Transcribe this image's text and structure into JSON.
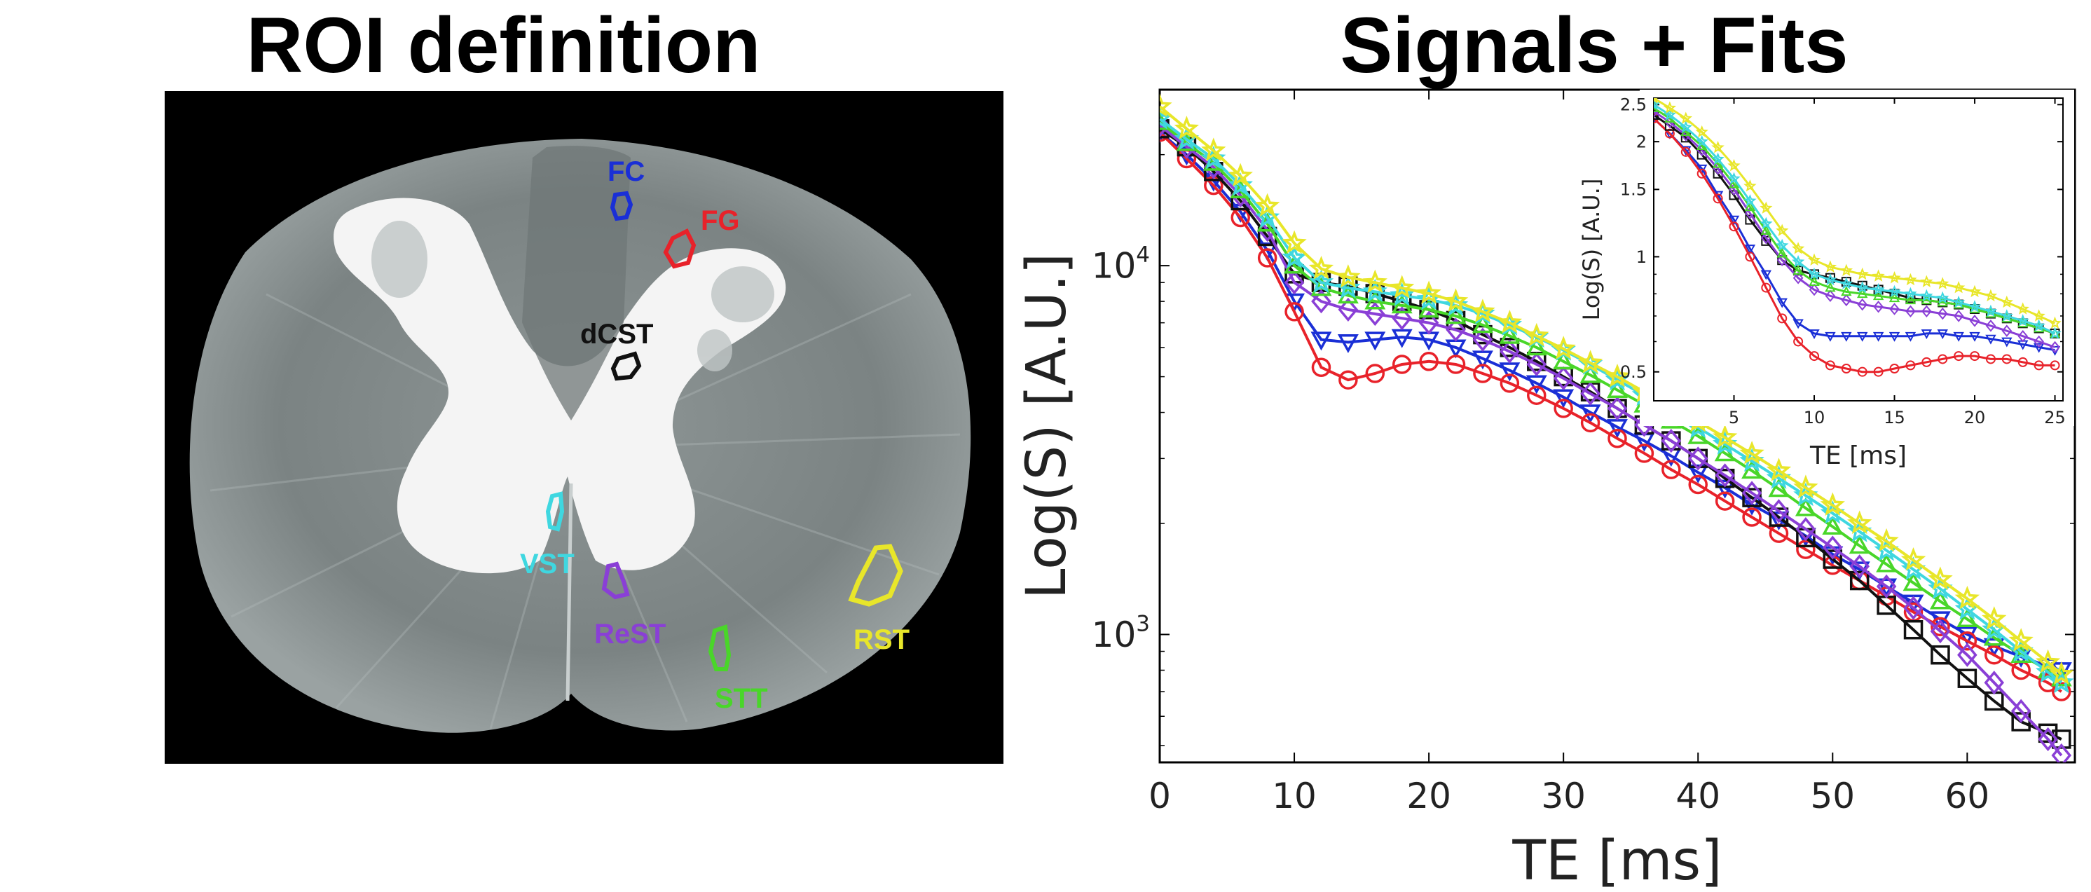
{
  "left_panel": {
    "title": "ROI definition",
    "rois": [
      {
        "label": "FC",
        "color": "#1a2fd6"
      },
      {
        "label": "FG",
        "color": "#e8222a"
      },
      {
        "label": "dCST",
        "color": "#111111"
      },
      {
        "label": "VST",
        "color": "#3fd7e0"
      },
      {
        "label": "ReST",
        "color": "#8a3fd6"
      },
      {
        "label": "RST",
        "color": "#e8e62a"
      },
      {
        "label": "STT",
        "color": "#49d629"
      }
    ]
  },
  "right_panel": {
    "title": "Signals + Fits"
  },
  "chart_data": [
    {
      "type": "scatter",
      "title": "Signals + Fits",
      "xlabel": "TE [ms]",
      "ylabel": "Log(S) [A.U.]",
      "yscale": "log",
      "xlim": [
        0,
        68
      ],
      "ylim": [
        450,
        30000
      ],
      "xticks": [
        0,
        10,
        20,
        30,
        40,
        50,
        60
      ],
      "xtick_labels": [
        "0",
        "10",
        "20",
        "30",
        "40",
        "50",
        "60"
      ],
      "yticks": [
        1000,
        10000
      ],
      "ytick_labels": [
        {
          "base": "10",
          "exp": "3"
        },
        {
          "base": "10",
          "exp": "4"
        }
      ],
      "x": [
        0,
        2,
        4,
        6,
        8,
        10,
        12,
        14,
        16,
        18,
        20,
        22,
        24,
        26,
        28,
        30,
        32,
        34,
        36,
        38,
        40,
        42,
        44,
        46,
        48,
        50,
        52,
        54,
        56,
        58,
        60,
        62,
        64,
        66,
        67
      ],
      "series": [
        {
          "name": "FC",
          "marker": "triangle-down",
          "color": "#1a2fd6",
          "values": [
            23000,
            20000,
            17000,
            14000,
            11000,
            8000,
            6300,
            6200,
            6300,
            6400,
            6300,
            6000,
            5600,
            5200,
            4800,
            4400,
            4000,
            3650,
            3350,
            3050,
            2750,
            2500,
            2250,
            2050,
            1850,
            1650,
            1500,
            1350,
            1220,
            1100,
            1000,
            930,
            870,
            820,
            800
          ]
        },
        {
          "name": "FG",
          "marker": "circle",
          "color": "#e8222a",
          "values": [
            23000,
            19500,
            16500,
            13500,
            10500,
            7500,
            5300,
            4900,
            5100,
            5400,
            5500,
            5400,
            5100,
            4800,
            4450,
            4100,
            3750,
            3400,
            3100,
            2800,
            2550,
            2300,
            2080,
            1880,
            1700,
            1540,
            1400,
            1270,
            1150,
            1050,
            960,
            880,
            800,
            740,
            700
          ]
        },
        {
          "name": "dCST",
          "marker": "square",
          "color": "#111111",
          "values": [
            23500,
            21000,
            18000,
            15000,
            12000,
            9500,
            9000,
            8800,
            8400,
            8000,
            7600,
            7100,
            6500,
            6000,
            5500,
            5000,
            4550,
            4100,
            3700,
            3350,
            3000,
            2650,
            2350,
            2080,
            1830,
            1600,
            1400,
            1200,
            1030,
            880,
            760,
            660,
            580,
            540,
            520
          ]
        },
        {
          "name": "ReST",
          "marker": "diamond",
          "color": "#8a3fd6",
          "values": [
            24000,
            21000,
            18500,
            15500,
            12500,
            9000,
            8000,
            7600,
            7400,
            7200,
            7000,
            6700,
            6300,
            5850,
            5400,
            4950,
            4500,
            4100,
            3700,
            3350,
            3000,
            2700,
            2420,
            2160,
            1930,
            1720,
            1530,
            1350,
            1180,
            1020,
            880,
            740,
            620,
            520,
            470
          ]
        },
        {
          "name": "STT",
          "marker": "triangle-up",
          "color": "#49d629",
          "values": [
            24500,
            21500,
            19000,
            16000,
            13000,
            10000,
            8700,
            8300,
            8000,
            7800,
            7600,
            7300,
            6900,
            6450,
            6000,
            5500,
            5050,
            4600,
            4200,
            3800,
            3450,
            3100,
            2780,
            2480,
            2200,
            1960,
            1740,
            1550,
            1380,
            1230,
            1100,
            980,
            880,
            800,
            760
          ]
        },
        {
          "name": "VST",
          "marker": "star",
          "color": "#3fd7e0",
          "values": [
            25000,
            22000,
            19500,
            16500,
            13500,
            10500,
            9000,
            8700,
            8500,
            8300,
            8100,
            7800,
            7400,
            6900,
            6400,
            5900,
            5400,
            4900,
            4450,
            4030,
            3640,
            3280,
            2950,
            2650,
            2380,
            2130,
            1900,
            1690,
            1500,
            1330,
            1170,
            1030,
            900,
            790,
            740
          ]
        },
        {
          "name": "RST",
          "marker": "star",
          "color": "#e8e62a",
          "values": [
            27000,
            23500,
            20500,
            17500,
            14500,
            11500,
            9800,
            9300,
            9000,
            8700,
            8400,
            8000,
            7500,
            7000,
            6450,
            5950,
            5450,
            5000,
            4550,
            4150,
            3780,
            3420,
            3090,
            2780,
            2500,
            2240,
            2000,
            1790,
            1590,
            1410,
            1250,
            1100,
            960,
            840,
            780
          ]
        }
      ]
    },
    {
      "type": "scatter",
      "title": "",
      "xlabel": "TE [ms]",
      "ylabel": "Log(S) [A.U.]",
      "yscale": "log",
      "xlim": [
        0,
        25.5
      ],
      "ylim": [
        0.42,
        2.6
      ],
      "xticks": [
        5,
        10,
        15,
        20,
        25
      ],
      "xtick_labels": [
        "5",
        "10",
        "15",
        "20",
        "25"
      ],
      "yticks": [
        0.5,
        1,
        1.5,
        2,
        2.5
      ],
      "ytick_labels": [
        "0.5",
        "1",
        "1.5",
        "2",
        "2.5"
      ],
      "x": [
        0,
        1,
        2,
        3,
        4,
        5,
        6,
        7,
        8,
        9,
        10,
        11,
        12,
        13,
        14,
        15,
        16,
        17,
        18,
        19,
        20,
        21,
        22,
        23,
        24,
        25
      ],
      "series": [
        {
          "name": "FC",
          "marker": "triangle-down",
          "color": "#1a2fd6",
          "values": [
            2.3,
            2.1,
            1.9,
            1.7,
            1.45,
            1.25,
            1.05,
            0.9,
            0.76,
            0.67,
            0.63,
            0.62,
            0.62,
            0.62,
            0.62,
            0.62,
            0.62,
            0.63,
            0.63,
            0.62,
            0.62,
            0.61,
            0.6,
            0.59,
            0.58,
            0.57
          ]
        },
        {
          "name": "FG",
          "marker": "circle",
          "color": "#e8222a",
          "values": [
            2.3,
            2.1,
            1.88,
            1.65,
            1.42,
            1.2,
            1.0,
            0.83,
            0.69,
            0.6,
            0.55,
            0.52,
            0.51,
            0.5,
            0.5,
            0.51,
            0.52,
            0.53,
            0.54,
            0.55,
            0.55,
            0.54,
            0.54,
            0.53,
            0.52,
            0.52
          ]
        },
        {
          "name": "dCST",
          "marker": "square",
          "color": "#111111",
          "values": [
            2.35,
            2.2,
            2.05,
            1.85,
            1.65,
            1.45,
            1.25,
            1.1,
            0.98,
            0.92,
            0.9,
            0.88,
            0.86,
            0.84,
            0.82,
            0.8,
            0.78,
            0.77,
            0.76,
            0.75,
            0.73,
            0.71,
            0.69,
            0.67,
            0.65,
            0.63
          ]
        },
        {
          "name": "ReST",
          "marker": "diamond",
          "color": "#8a3fd6",
          "values": [
            2.4,
            2.25,
            2.08,
            1.9,
            1.7,
            1.5,
            1.3,
            1.12,
            0.98,
            0.88,
            0.82,
            0.79,
            0.77,
            0.75,
            0.74,
            0.73,
            0.72,
            0.72,
            0.71,
            0.7,
            0.68,
            0.66,
            0.64,
            0.62,
            0.6,
            0.58
          ]
        },
        {
          "name": "STT",
          "marker": "triangle-up",
          "color": "#49d629",
          "values": [
            2.45,
            2.3,
            2.12,
            1.95,
            1.75,
            1.55,
            1.35,
            1.17,
            1.02,
            0.92,
            0.86,
            0.83,
            0.81,
            0.8,
            0.79,
            0.78,
            0.77,
            0.77,
            0.76,
            0.75,
            0.73,
            0.71,
            0.69,
            0.67,
            0.65,
            0.63
          ]
        },
        {
          "name": "VST",
          "marker": "star",
          "color": "#3fd7e0",
          "values": [
            2.5,
            2.35,
            2.18,
            2.0,
            1.8,
            1.6,
            1.4,
            1.22,
            1.07,
            0.97,
            0.9,
            0.87,
            0.85,
            0.83,
            0.82,
            0.81,
            0.8,
            0.79,
            0.78,
            0.76,
            0.74,
            0.72,
            0.7,
            0.68,
            0.66,
            0.63
          ]
        },
        {
          "name": "RST",
          "marker": "star",
          "color": "#e8e62a",
          "values": [
            2.6,
            2.45,
            2.3,
            2.12,
            1.93,
            1.73,
            1.53,
            1.34,
            1.17,
            1.05,
            0.98,
            0.94,
            0.92,
            0.9,
            0.89,
            0.88,
            0.87,
            0.86,
            0.85,
            0.83,
            0.81,
            0.79,
            0.76,
            0.73,
            0.7,
            0.67
          ]
        }
      ]
    }
  ]
}
